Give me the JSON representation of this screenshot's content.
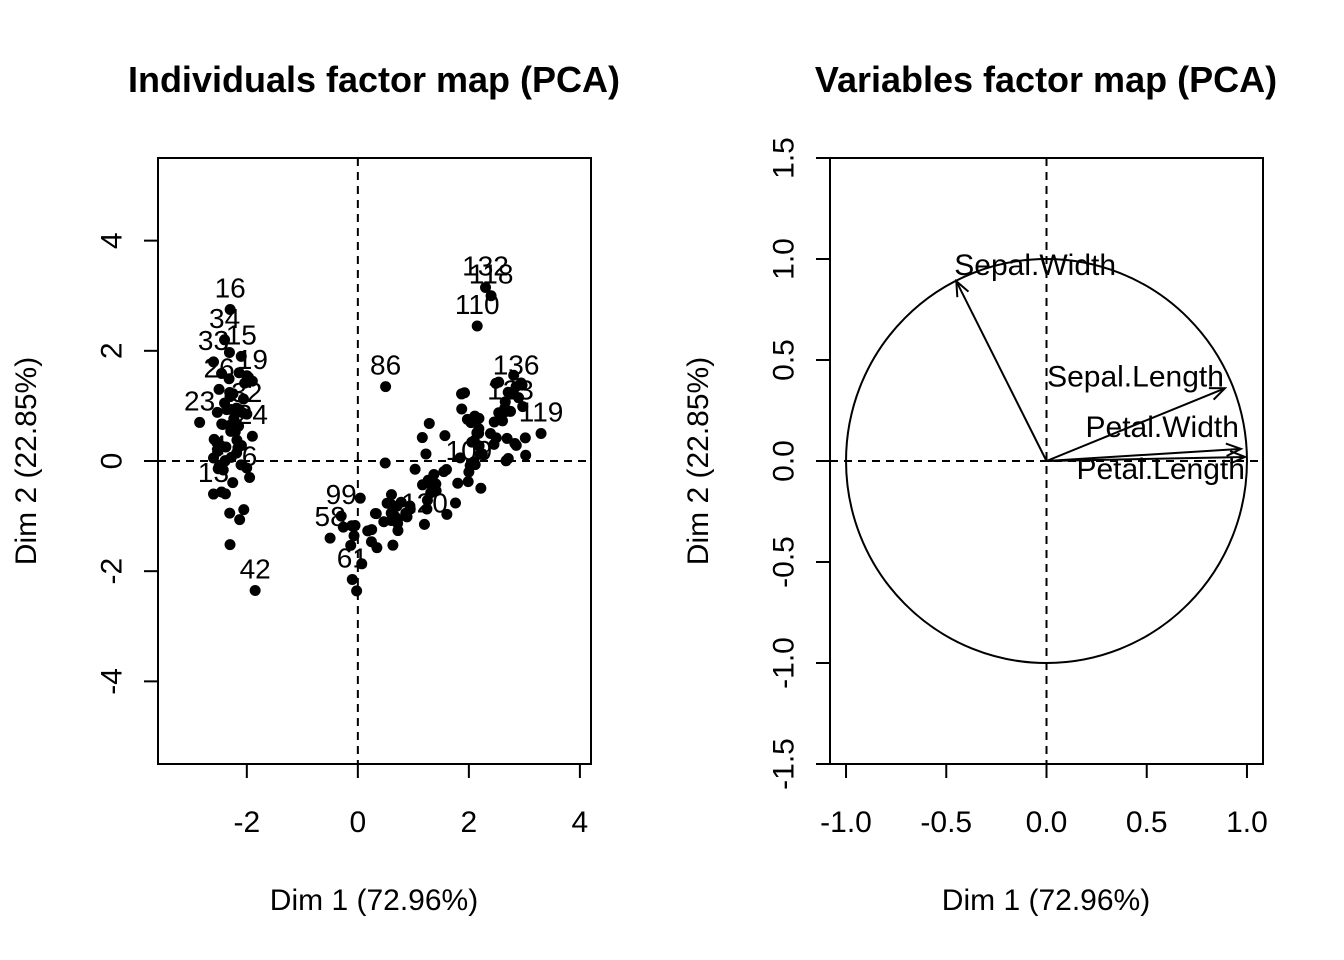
{
  "chart_data": [
    {
      "type": "scatter",
      "title": "Individuals factor map (PCA)",
      "xlabel": "Dim 1 (72.96%)",
      "ylabel": "Dim 2 (22.85%)",
      "xlim": [
        -3.6,
        4.2
      ],
      "ylim": [
        -5.5,
        5.5
      ],
      "xticks": [
        -2,
        0,
        2,
        4
      ],
      "yticks": [
        -4,
        -2,
        0,
        2,
        4
      ],
      "reference_lines": {
        "x": 0,
        "y": 0
      },
      "labeled_points": [
        {
          "label": "16",
          "x": -2.3,
          "y": 2.75
        },
        {
          "label": "34",
          "x": -2.4,
          "y": 2.2
        },
        {
          "label": "33",
          "x": -2.6,
          "y": 1.8
        },
        {
          "label": "15",
          "x": -2.1,
          "y": 1.9
        },
        {
          "label": "19",
          "x": -1.9,
          "y": 1.45
        },
        {
          "label": "26",
          "x": -2.5,
          "y": 1.3
        },
        {
          "label": "23",
          "x": -2.85,
          "y": 0.7
        },
        {
          "label": "32",
          "x": -2.0,
          "y": 0.85
        },
        {
          "label": "24",
          "x": -1.9,
          "y": 0.45
        },
        {
          "label": "4",
          "x": -2.5,
          "y": -0.1
        },
        {
          "label": "13",
          "x": -2.6,
          "y": -0.6
        },
        {
          "label": "6",
          "x": -1.95,
          "y": -0.3
        },
        {
          "label": "42",
          "x": -1.85,
          "y": -2.35
        },
        {
          "label": "132",
          "x": 2.3,
          "y": 3.15
        },
        {
          "label": "118",
          "x": 2.4,
          "y": 3.0
        },
        {
          "label": "110",
          "x": 2.15,
          "y": 2.45
        },
        {
          "label": "136",
          "x": 2.85,
          "y": 1.35
        },
        {
          "label": "123",
          "x": 2.75,
          "y": 0.9
        },
        {
          "label": "119",
          "x": 3.3,
          "y": 0.5
        },
        {
          "label": "86",
          "x": 0.5,
          "y": 1.35
        },
        {
          "label": "109",
          "x": 2.0,
          "y": -0.2
        },
        {
          "label": "120",
          "x": 1.2,
          "y": -1.15
        },
        {
          "label": "99",
          "x": -0.3,
          "y": -1.0
        },
        {
          "label": "58",
          "x": -0.5,
          "y": -1.4
        },
        {
          "label": "61",
          "x": -0.1,
          "y": -2.15
        }
      ],
      "point_count": 150
    },
    {
      "type": "scatter",
      "title": "Variables factor map (PCA)",
      "xlabel": "Dim 1 (72.96%)",
      "ylabel": "Dim 2 (22.85%)",
      "xlim": [
        -1.08,
        1.08
      ],
      "ylim": [
        -1.5,
        1.5
      ],
      "xticks": [
        -1.0,
        -0.5,
        0.0,
        0.5,
        1.0
      ],
      "yticks": [
        -1.5,
        -1.0,
        -0.5,
        0.0,
        0.5,
        1.0,
        1.5
      ],
      "xtick_labels": [
        "-1.0",
        "-0.5",
        "0.0",
        "0.5",
        "1.0"
      ],
      "ytick_labels": [
        "-1.5",
        "-1.0",
        "-0.5",
        "0.0",
        "0.5",
        "1.0",
        "1.5"
      ],
      "correlation_circle": true,
      "reference_lines": {
        "x": 0,
        "y": 0
      },
      "vectors": [
        {
          "name": "Sepal.Width",
          "x": -0.45,
          "y": 0.89
        },
        {
          "name": "Sepal.Length",
          "x": 0.89,
          "y": 0.36
        },
        {
          "name": "Petal.Width",
          "x": 0.97,
          "y": 0.06
        },
        {
          "name": "Petal.Length",
          "x": 0.99,
          "y": 0.02
        }
      ]
    }
  ]
}
